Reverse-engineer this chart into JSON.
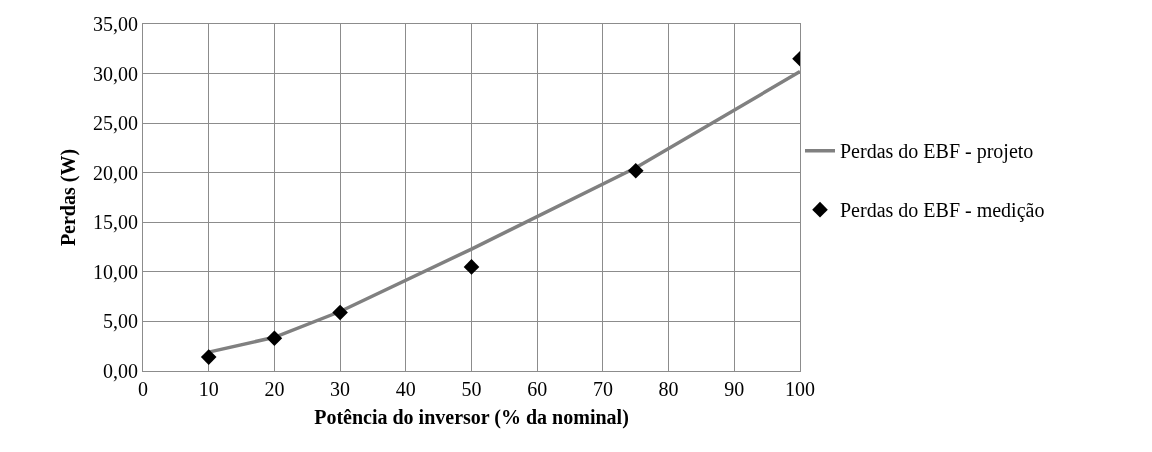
{
  "chart_data": {
    "type": "line",
    "xlabel": "Potência do inversor (% da nominal)",
    "ylabel": "Perdas (W)",
    "x": [
      10,
      20,
      30,
      50,
      75,
      100
    ],
    "series": [
      {
        "name": "Perdas do EBF - projeto",
        "color": "#808080",
        "marker": "none",
        "line_style": "solid",
        "values": [
          1.9,
          3.4,
          6.0,
          12.3,
          20.5,
          30.2
        ]
      },
      {
        "name": "Perdas do EBF - medição",
        "type": "scatter",
        "color": "#000000",
        "marker": "diamond",
        "values": [
          1.4,
          3.3,
          5.9,
          10.5,
          20.2,
          31.5
        ]
      }
    ],
    "xlim": [
      0,
      100
    ],
    "xticks": [
      0,
      10,
      20,
      30,
      40,
      50,
      60,
      70,
      80,
      90,
      100
    ],
    "ylim": [
      0,
      35
    ],
    "yticks": [
      {
        "value": 0,
        "label": "0,00"
      },
      {
        "value": 5,
        "label": "5,00"
      },
      {
        "value": 10,
        "label": "10,00"
      },
      {
        "value": 15,
        "label": "15,00"
      },
      {
        "value": 20,
        "label": "20,00"
      },
      {
        "value": 25,
        "label": "25,00"
      },
      {
        "value": 30,
        "label": "30,00"
      },
      {
        "value": 35,
        "label": "35,00"
      }
    ],
    "grid": true,
    "legend": "right"
  }
}
